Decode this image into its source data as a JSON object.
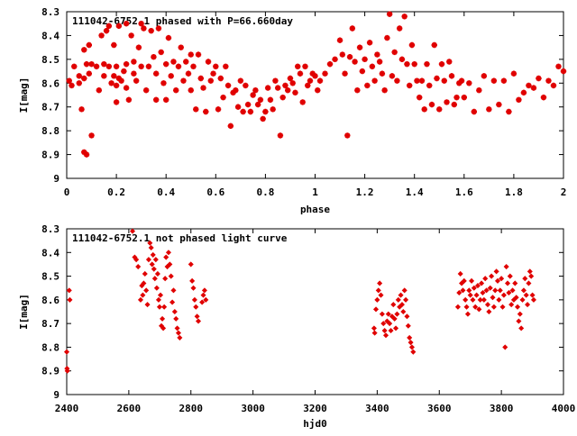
{
  "colors": {
    "points": "#e00000",
    "axes": "#000000",
    "background": "#ffffff"
  },
  "chart_data": [
    {
      "type": "scatter",
      "title": "111042-6752.1 phased with P=66.660day",
      "xlabel": "phase",
      "ylabel": "I[mag]",
      "xlim": [
        0,
        2
      ],
      "ylim": [
        8.3,
        9.0
      ],
      "y_inverted": true,
      "xticks": [
        0,
        0.2,
        0.4,
        0.6,
        0.8,
        1,
        1.2,
        1.4,
        1.6,
        1.8,
        2
      ],
      "xtick_labels": [
        "0",
        "0.2",
        "0.4",
        "0.6",
        "0.8",
        "1",
        "1.2",
        "1.4",
        "1.6",
        "1.8",
        "2"
      ],
      "yticks": [
        8.3,
        8.4,
        8.5,
        8.6,
        8.7,
        8.8,
        8.9,
        9.0
      ],
      "ytick_labels": [
        "8.3",
        "8.4",
        "8.5",
        "8.6",
        "8.7",
        "8.8",
        "8.9",
        "9"
      ],
      "marker": "star",
      "grid": false,
      "points": [
        [
          0.01,
          8.59
        ],
        [
          0.02,
          8.61
        ],
        [
          0.03,
          8.53
        ],
        [
          0.05,
          8.57
        ],
        [
          0.05,
          8.6
        ],
        [
          0.06,
          8.71
        ],
        [
          0.07,
          8.46
        ],
        [
          0.07,
          8.58
        ],
        [
          0.07,
          8.89
        ],
        [
          0.08,
          8.52
        ],
        [
          0.08,
          8.9
        ],
        [
          0.09,
          8.44
        ],
        [
          0.09,
          8.56
        ],
        [
          0.1,
          8.52
        ],
        [
          0.1,
          8.82
        ],
        [
          0.12,
          8.53
        ],
        [
          0.13,
          8.63
        ],
        [
          0.14,
          8.4
        ],
        [
          0.15,
          8.52
        ],
        [
          0.15,
          8.57
        ],
        [
          0.16,
          8.38
        ],
        [
          0.17,
          8.36
        ],
        [
          0.17,
          8.53
        ],
        [
          0.18,
          8.6
        ],
        [
          0.19,
          8.44
        ],
        [
          0.19,
          8.57
        ],
        [
          0.2,
          8.53
        ],
        [
          0.2,
          8.61
        ],
        [
          0.2,
          8.68
        ],
        [
          0.21,
          8.36
        ],
        [
          0.21,
          8.58
        ],
        [
          0.22,
          8.59
        ],
        [
          0.23,
          8.55
        ],
        [
          0.24,
          8.35
        ],
        [
          0.24,
          8.52
        ],
        [
          0.24,
          8.62
        ],
        [
          0.25,
          8.67
        ],
        [
          0.26,
          8.4
        ],
        [
          0.27,
          8.51
        ],
        [
          0.27,
          8.56
        ],
        [
          0.28,
          8.59
        ],
        [
          0.29,
          8.45
        ],
        [
          0.3,
          8.35
        ],
        [
          0.3,
          8.53
        ],
        [
          0.31,
          8.37
        ],
        [
          0.32,
          8.63
        ],
        [
          0.33,
          8.53
        ],
        [
          0.34,
          8.38
        ],
        [
          0.35,
          8.49
        ],
        [
          0.36,
          8.56
        ],
        [
          0.36,
          8.67
        ],
        [
          0.37,
          8.37
        ],
        [
          0.38,
          8.47
        ],
        [
          0.39,
          8.6
        ],
        [
          0.4,
          8.67
        ],
        [
          0.4,
          8.52
        ],
        [
          0.41,
          8.41
        ],
        [
          0.42,
          8.57
        ],
        [
          0.43,
          8.51
        ],
        [
          0.44,
          8.63
        ],
        [
          0.45,
          8.53
        ],
        [
          0.46,
          8.45
        ],
        [
          0.47,
          8.59
        ],
        [
          0.48,
          8.51
        ],
        [
          0.49,
          8.56
        ],
        [
          0.5,
          8.63
        ],
        [
          0.5,
          8.48
        ],
        [
          0.51,
          8.53
        ],
        [
          0.52,
          8.71
        ],
        [
          0.53,
          8.48
        ],
        [
          0.54,
          8.58
        ],
        [
          0.55,
          8.62
        ],
        [
          0.56,
          8.72
        ],
        [
          0.57,
          8.51
        ],
        [
          0.58,
          8.59
        ],
        [
          0.59,
          8.56
        ],
        [
          0.6,
          8.53
        ],
        [
          0.61,
          8.71
        ],
        [
          0.62,
          8.58
        ],
        [
          0.63,
          8.66
        ],
        [
          0.64,
          8.53
        ],
        [
          0.65,
          8.61
        ],
        [
          0.66,
          8.78
        ],
        [
          0.67,
          8.64
        ],
        [
          0.68,
          8.63
        ],
        [
          0.69,
          8.7
        ],
        [
          0.7,
          8.59
        ],
        [
          0.71,
          8.72
        ],
        [
          0.72,
          8.61
        ],
        [
          0.73,
          8.69
        ],
        [
          0.74,
          8.72
        ],
        [
          0.75,
          8.65
        ],
        [
          0.76,
          8.63
        ],
        [
          0.77,
          8.69
        ],
        [
          0.78,
          8.67
        ],
        [
          0.79,
          8.75
        ],
        [
          0.8,
          8.72
        ],
        [
          0.81,
          8.62
        ],
        [
          0.82,
          8.67
        ],
        [
          0.83,
          8.71
        ],
        [
          0.84,
          8.59
        ],
        [
          0.85,
          8.62
        ],
        [
          0.86,
          8.82
        ],
        [
          0.87,
          8.66
        ],
        [
          0.88,
          8.61
        ],
        [
          0.89,
          8.63
        ],
        [
          0.9,
          8.58
        ],
        [
          0.91,
          8.6
        ],
        [
          0.92,
          8.64
        ],
        [
          0.93,
          8.53
        ],
        [
          0.94,
          8.56
        ],
        [
          0.95,
          8.68
        ],
        [
          0.96,
          8.53
        ],
        [
          0.97,
          8.61
        ],
        [
          0.98,
          8.59
        ],
        [
          0.99,
          8.56
        ],
        [
          1.0,
          8.57
        ],
        [
          1.01,
          8.63
        ],
        [
          1.02,
          8.59
        ],
        [
          1.04,
          8.56
        ],
        [
          1.06,
          8.52
        ],
        [
          1.08,
          8.5
        ],
        [
          1.1,
          8.42
        ],
        [
          1.11,
          8.48
        ],
        [
          1.12,
          8.56
        ],
        [
          1.13,
          8.82
        ],
        [
          1.14,
          8.49
        ],
        [
          1.15,
          8.37
        ],
        [
          1.16,
          8.51
        ],
        [
          1.17,
          8.63
        ],
        [
          1.18,
          8.45
        ],
        [
          1.19,
          8.55
        ],
        [
          1.2,
          8.5
        ],
        [
          1.21,
          8.61
        ],
        [
          1.22,
          8.43
        ],
        [
          1.23,
          8.53
        ],
        [
          1.24,
          8.59
        ],
        [
          1.25,
          8.48
        ],
        [
          1.26,
          8.51
        ],
        [
          1.27,
          8.56
        ],
        [
          1.28,
          8.63
        ],
        [
          1.29,
          8.41
        ],
        [
          1.3,
          8.31
        ],
        [
          1.31,
          8.57
        ],
        [
          1.32,
          8.47
        ],
        [
          1.33,
          8.59
        ],
        [
          1.34,
          8.37
        ],
        [
          1.35,
          8.5
        ],
        [
          1.36,
          8.32
        ],
        [
          1.37,
          8.52
        ],
        [
          1.38,
          8.61
        ],
        [
          1.39,
          8.44
        ],
        [
          1.4,
          8.52
        ],
        [
          1.41,
          8.59
        ],
        [
          1.42,
          8.66
        ],
        [
          1.43,
          8.59
        ],
        [
          1.44,
          8.71
        ],
        [
          1.45,
          8.52
        ],
        [
          1.46,
          8.61
        ],
        [
          1.47,
          8.69
        ],
        [
          1.48,
          8.44
        ],
        [
          1.49,
          8.58
        ],
        [
          1.5,
          8.71
        ],
        [
          1.51,
          8.52
        ],
        [
          1.52,
          8.59
        ],
        [
          1.53,
          8.68
        ],
        [
          1.54,
          8.51
        ],
        [
          1.55,
          8.57
        ],
        [
          1.56,
          8.69
        ],
        [
          1.57,
          8.66
        ],
        [
          1.58,
          8.6
        ],
        [
          1.59,
          8.59
        ],
        [
          1.6,
          8.66
        ],
        [
          1.62,
          8.6
        ],
        [
          1.64,
          8.72
        ],
        [
          1.66,
          8.63
        ],
        [
          1.68,
          8.57
        ],
        [
          1.7,
          8.71
        ],
        [
          1.72,
          8.59
        ],
        [
          1.74,
          8.69
        ],
        [
          1.76,
          8.59
        ],
        [
          1.78,
          8.72
        ],
        [
          1.8,
          8.56
        ],
        [
          1.82,
          8.67
        ],
        [
          1.84,
          8.64
        ],
        [
          1.86,
          8.61
        ],
        [
          1.88,
          8.62
        ],
        [
          1.9,
          8.58
        ],
        [
          1.92,
          8.66
        ],
        [
          1.94,
          8.59
        ],
        [
          1.96,
          8.61
        ],
        [
          1.98,
          8.53
        ],
        [
          2.0,
          8.55
        ]
      ]
    },
    {
      "type": "scatter",
      "title": "111042-6752.1 not phased light curve",
      "xlabel": "hjd0",
      "ylabel": "I[mag]",
      "xlim": [
        2400,
        4000
      ],
      "ylim": [
        8.3,
        9.0
      ],
      "y_inverted": true,
      "xticks": [
        2400,
        2600,
        2800,
        3000,
        3200,
        3400,
        3600,
        3800,
        4000
      ],
      "xtick_labels": [
        "2400",
        "2600",
        "2800",
        "3000",
        "3200",
        "3400",
        "3600",
        "3800",
        "4000"
      ],
      "yticks": [
        8.3,
        8.4,
        8.5,
        8.6,
        8.7,
        8.8,
        8.9,
        9.0
      ],
      "ytick_labels": [
        "8.3",
        "8.4",
        "8.5",
        "8.6",
        "8.7",
        "8.8",
        "8.9",
        "9"
      ],
      "marker": "diamond",
      "grid": false,
      "points": [
        [
          2400,
          8.82
        ],
        [
          2401,
          8.89
        ],
        [
          2402,
          8.9
        ],
        [
          2408,
          8.56
        ],
        [
          2410,
          8.6
        ],
        [
          2612,
          8.31
        ],
        [
          2619,
          8.42
        ],
        [
          2624,
          8.43
        ],
        [
          2630,
          8.46
        ],
        [
          2638,
          8.6
        ],
        [
          2642,
          8.54
        ],
        [
          2645,
          8.58
        ],
        [
          2648,
          8.53
        ],
        [
          2652,
          8.49
        ],
        [
          2656,
          8.56
        ],
        [
          2660,
          8.62
        ],
        [
          2664,
          8.43
        ],
        [
          2668,
          8.36
        ],
        [
          2672,
          8.38
        ],
        [
          2675,
          8.45
        ],
        [
          2678,
          8.41
        ],
        [
          2681,
          8.47
        ],
        [
          2684,
          8.51
        ],
        [
          2687,
          8.43
        ],
        [
          2690,
          8.55
        ],
        [
          2693,
          8.49
        ],
        [
          2696,
          8.6
        ],
        [
          2699,
          8.63
        ],
        [
          2702,
          8.58
        ],
        [
          2705,
          8.71
        ],
        [
          2708,
          8.68
        ],
        [
          2711,
          8.72
        ],
        [
          2714,
          8.63
        ],
        [
          2717,
          8.51
        ],
        [
          2720,
          8.42
        ],
        [
          2724,
          8.46
        ],
        [
          2728,
          8.4
        ],
        [
          2732,
          8.45
        ],
        [
          2736,
          8.5
        ],
        [
          2740,
          8.61
        ],
        [
          2744,
          8.56
        ],
        [
          2748,
          8.65
        ],
        [
          2752,
          8.68
        ],
        [
          2756,
          8.72
        ],
        [
          2760,
          8.74
        ],
        [
          2764,
          8.76
        ],
        [
          2800,
          8.45
        ],
        [
          2804,
          8.52
        ],
        [
          2808,
          8.55
        ],
        [
          2812,
          8.6
        ],
        [
          2816,
          8.63
        ],
        [
          2820,
          8.67
        ],
        [
          2824,
          8.69
        ],
        [
          2836,
          8.61
        ],
        [
          2840,
          8.58
        ],
        [
          2844,
          8.56
        ],
        [
          2848,
          8.6
        ],
        [
          3390,
          8.72
        ],
        [
          3392,
          8.74
        ],
        [
          3396,
          8.64
        ],
        [
          3400,
          8.6
        ],
        [
          3404,
          8.56
        ],
        [
          3408,
          8.53
        ],
        [
          3412,
          8.58
        ],
        [
          3416,
          8.66
        ],
        [
          3420,
          8.7
        ],
        [
          3424,
          8.73
        ],
        [
          3428,
          8.75
        ],
        [
          3432,
          8.69
        ],
        [
          3436,
          8.66
        ],
        [
          3440,
          8.7
        ],
        [
          3444,
          8.73
        ],
        [
          3448,
          8.67
        ],
        [
          3452,
          8.62
        ],
        [
          3456,
          8.68
        ],
        [
          3460,
          8.72
        ],
        [
          3464,
          8.66
        ],
        [
          3468,
          8.6
        ],
        [
          3472,
          8.63
        ],
        [
          3476,
          8.58
        ],
        [
          3480,
          8.62
        ],
        [
          3484,
          8.65
        ],
        [
          3488,
          8.56
        ],
        [
          3492,
          8.6
        ],
        [
          3496,
          8.67
        ],
        [
          3500,
          8.71
        ],
        [
          3504,
          8.76
        ],
        [
          3508,
          8.78
        ],
        [
          3512,
          8.8
        ],
        [
          3516,
          8.82
        ],
        [
          3660,
          8.63
        ],
        [
          3664,
          8.57
        ],
        [
          3668,
          8.49
        ],
        [
          3672,
          8.53
        ],
        [
          3676,
          8.56
        ],
        [
          3680,
          8.52
        ],
        [
          3684,
          8.6
        ],
        [
          3688,
          8.63
        ],
        [
          3692,
          8.66
        ],
        [
          3696,
          8.56
        ],
        [
          3700,
          8.58
        ],
        [
          3704,
          8.52
        ],
        [
          3708,
          8.6
        ],
        [
          3712,
          8.55
        ],
        [
          3716,
          8.63
        ],
        [
          3720,
          8.58
        ],
        [
          3724,
          8.54
        ],
        [
          3728,
          8.64
        ],
        [
          3732,
          8.6
        ],
        [
          3736,
          8.53
        ],
        [
          3740,
          8.57
        ],
        [
          3744,
          8.6
        ],
        [
          3748,
          8.51
        ],
        [
          3752,
          8.56
        ],
        [
          3756,
          8.62
        ],
        [
          3760,
          8.65
        ],
        [
          3764,
          8.55
        ],
        [
          3768,
          8.5
        ],
        [
          3772,
          8.59
        ],
        [
          3776,
          8.63
        ],
        [
          3780,
          8.56
        ],
        [
          3784,
          8.48
        ],
        [
          3788,
          8.52
        ],
        [
          3792,
          8.6
        ],
        [
          3796,
          8.56
        ],
        [
          3800,
          8.51
        ],
        [
          3804,
          8.63
        ],
        [
          3808,
          8.58
        ],
        [
          3812,
          8.8
        ],
        [
          3816,
          8.46
        ],
        [
          3820,
          8.53
        ],
        [
          3824,
          8.57
        ],
        [
          3828,
          8.5
        ],
        [
          3832,
          8.62
        ],
        [
          3836,
          8.56
        ],
        [
          3840,
          8.6
        ],
        [
          3844,
          8.53
        ],
        [
          3848,
          8.59
        ],
        [
          3852,
          8.63
        ],
        [
          3856,
          8.69
        ],
        [
          3860,
          8.66
        ],
        [
          3864,
          8.72
        ],
        [
          3868,
          8.6
        ],
        [
          3872,
          8.56
        ],
        [
          3876,
          8.51
        ],
        [
          3880,
          8.58
        ],
        [
          3884,
          8.62
        ],
        [
          3888,
          8.53
        ],
        [
          3892,
          8.48
        ],
        [
          3896,
          8.5
        ],
        [
          3900,
          8.58
        ],
        [
          3904,
          8.6
        ]
      ]
    }
  ]
}
